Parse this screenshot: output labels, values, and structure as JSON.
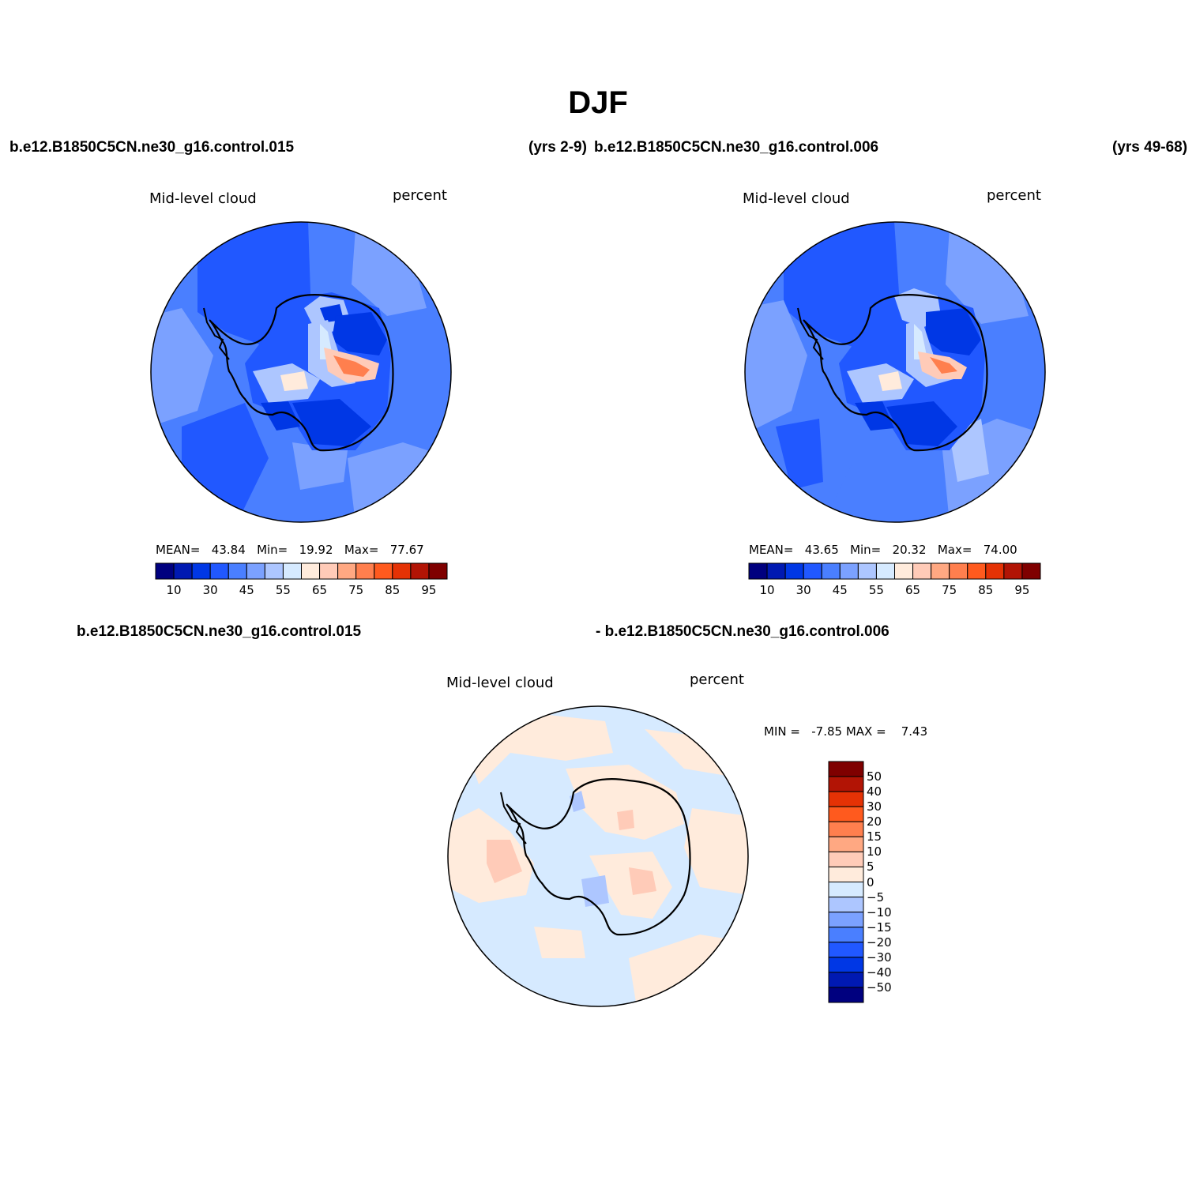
{
  "title": "DJF",
  "header": {
    "case1": "b.e12.B1850C5CN.ne30_g16.control.015",
    "years1": "(yrs 2-9)",
    "case2": "b.e12.B1850C5CN.ne30_g16.control.006",
    "years2": "(yrs 49-68)"
  },
  "diff_header": {
    "case1": "b.e12.B1850C5CN.ne30_g16.control.015",
    "case2": "- b.e12.B1850C5CN.ne30_g16.control.006"
  },
  "panels": [
    {
      "variable": "Mid-level cloud",
      "units": "percent",
      "mean_label": "MEAN=",
      "mean": "43.84",
      "min_label": "Min=",
      "min": "19.92",
      "max_label": "Max=",
      "max": "77.67"
    },
    {
      "variable": "Mid-level cloud",
      "units": "percent",
      "mean_label": "MEAN=",
      "mean": "43.65",
      "min_label": "Min=",
      "min": "20.32",
      "max_label": "Max=",
      "max": "74.00"
    }
  ],
  "diff_panel": {
    "variable": "Mid-level cloud",
    "units": "percent",
    "min_label": "MIN =",
    "min": "-7.85",
    "max_label": "MAX =",
    "max": "7.43"
  },
  "colorbar_main": {
    "colors": [
      "#00007f",
      "#0019b2",
      "#0037e5",
      "#2158ff",
      "#4a7fff",
      "#7ba1ff",
      "#adc6ff",
      "#d6eaff",
      "#ffebdc",
      "#ffcbb8",
      "#ffa882",
      "#ff7f4e",
      "#ff5a1e",
      "#e53205",
      "#b21405",
      "#7f0000"
    ],
    "labels": [
      "10",
      "30",
      "45",
      "55",
      "65",
      "75",
      "85",
      "95"
    ]
  },
  "colorbar_diff": {
    "colors": [
      "#7f0000",
      "#b21405",
      "#e53205",
      "#ff5a1e",
      "#ff7f4e",
      "#ffa882",
      "#ffcbb8",
      "#ffebdc",
      "#d6eaff",
      "#adc6ff",
      "#7ba1ff",
      "#4a7fff",
      "#2158ff",
      "#0037e5",
      "#0019b2",
      "#00007f"
    ],
    "labels": [
      "50",
      "40",
      "30",
      "20",
      "15",
      "10",
      "5",
      "0",
      "−5",
      "−10",
      "−15",
      "−20",
      "−30",
      "−40",
      "−50"
    ]
  }
}
